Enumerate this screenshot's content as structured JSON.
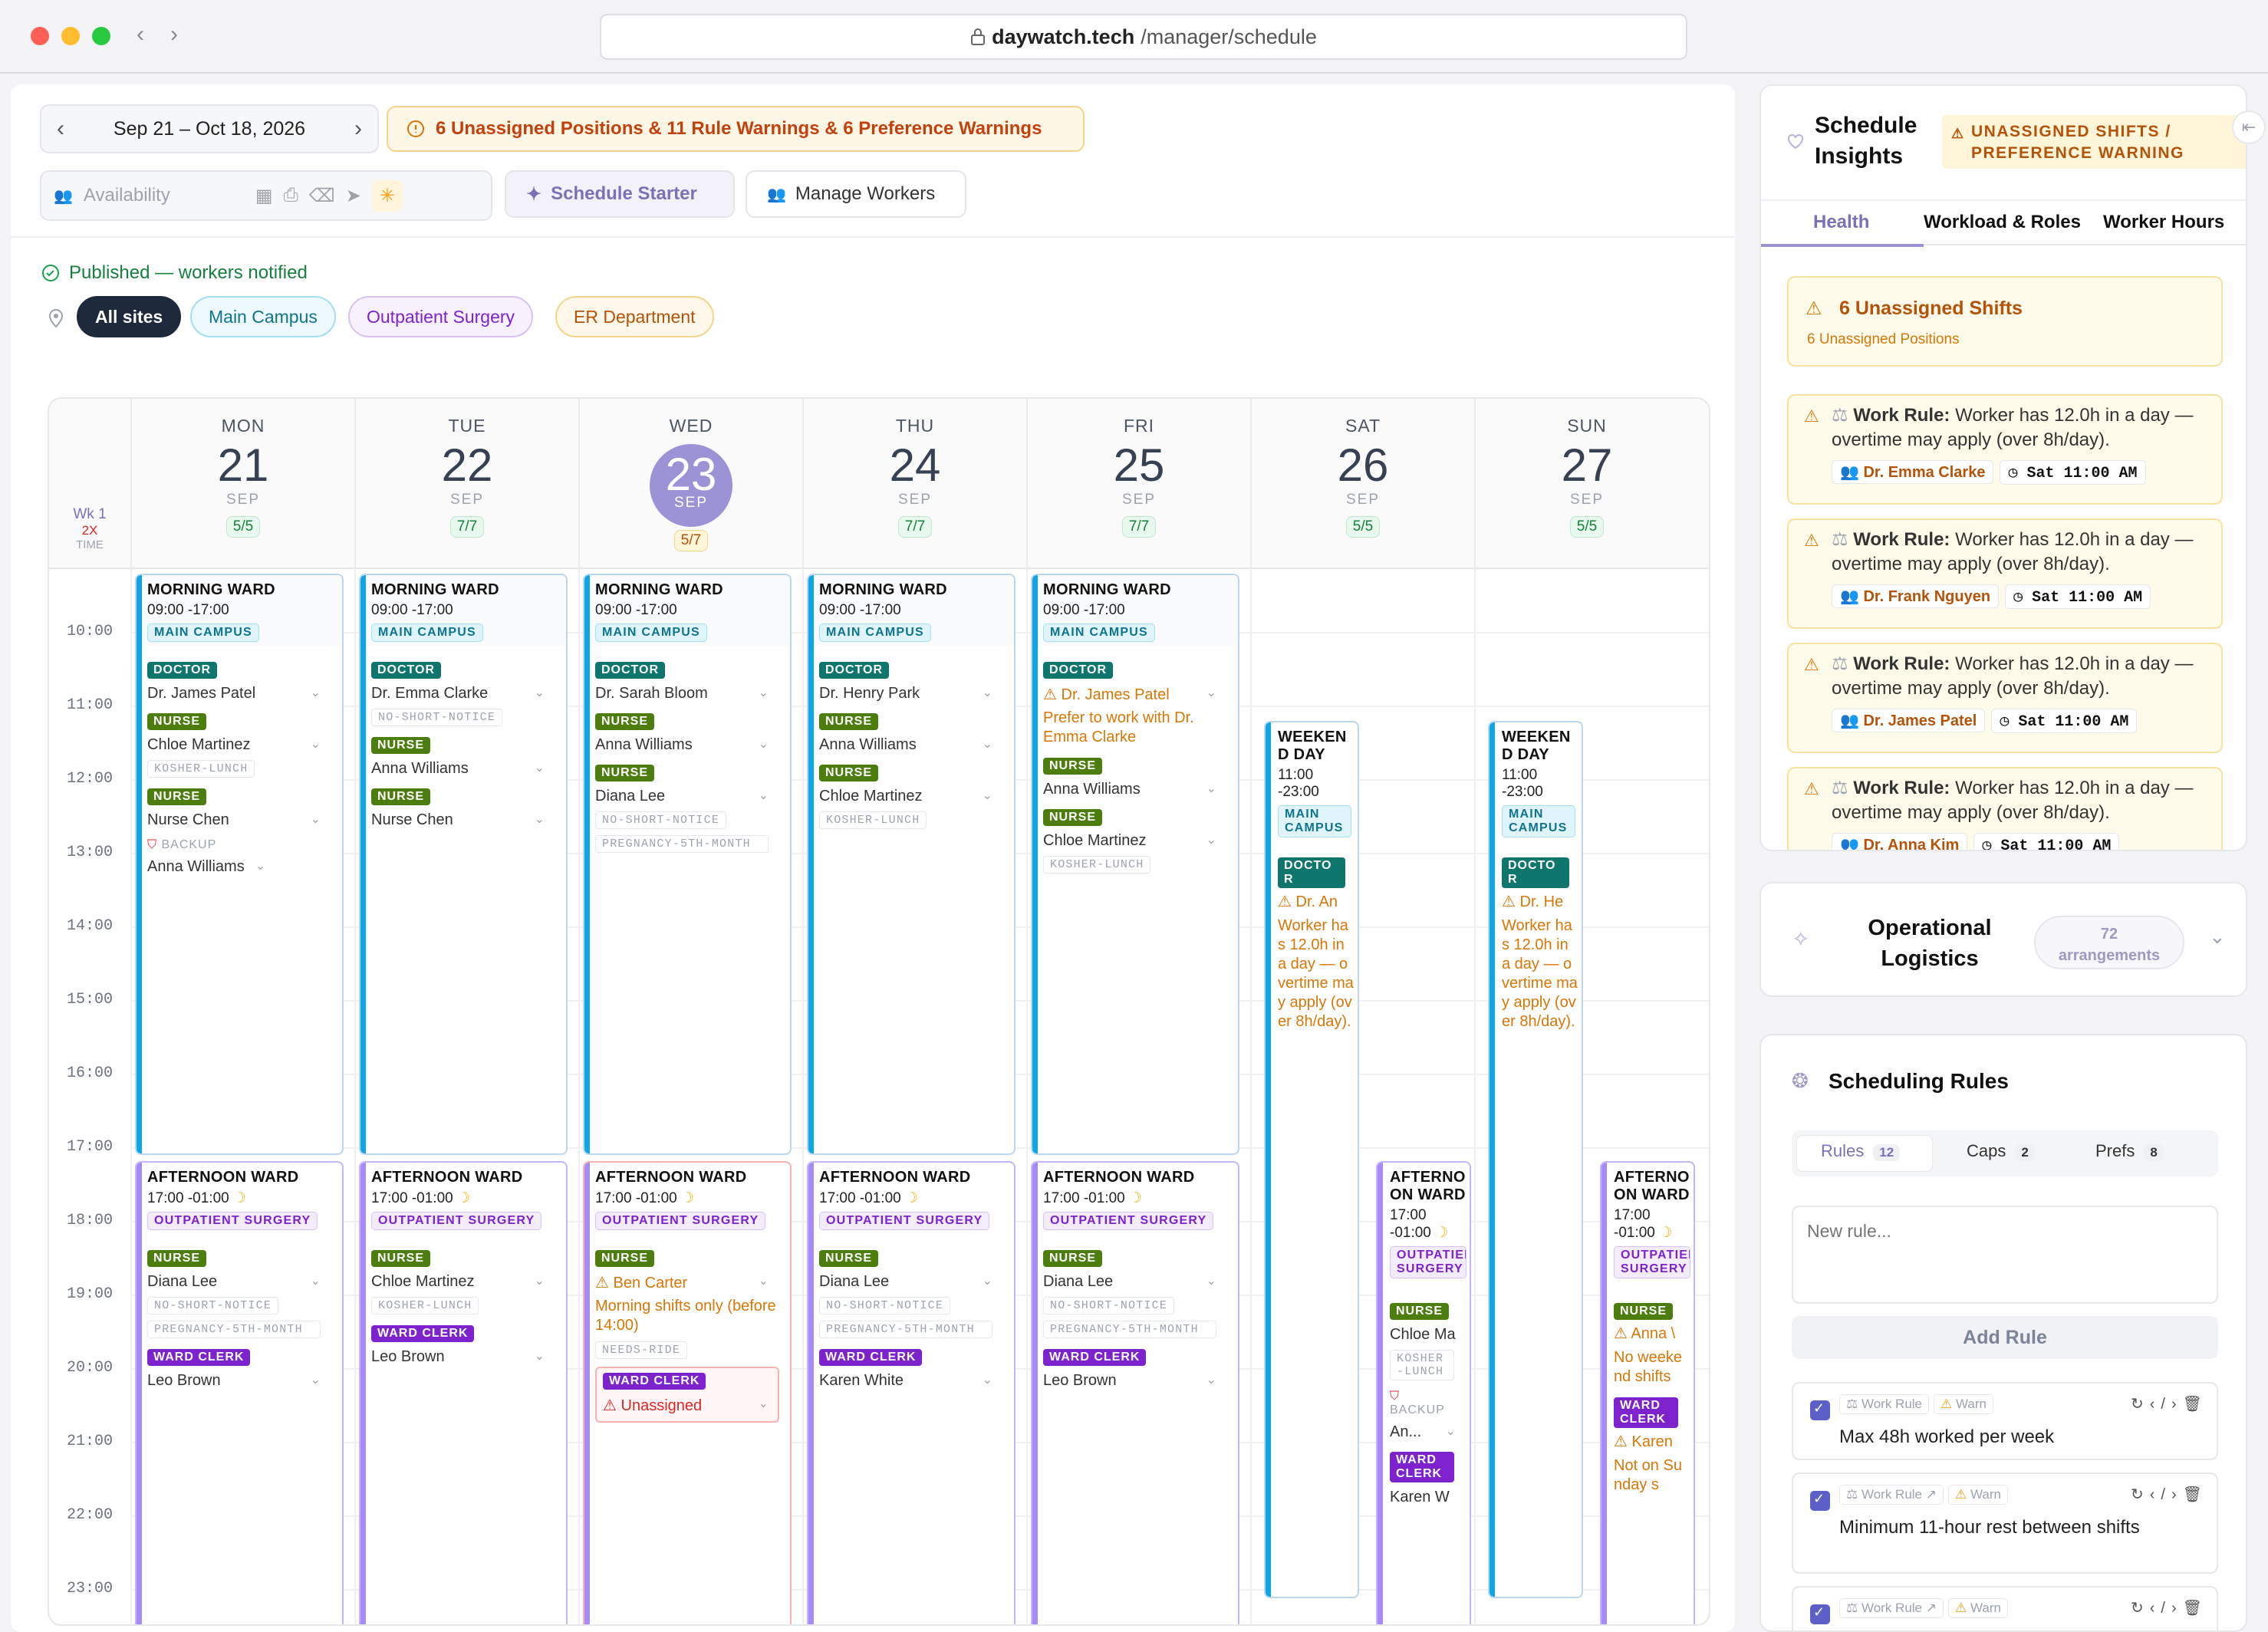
{
  "browser": {
    "host": "daywatch.tech",
    "path": "/manager/schedule"
  },
  "toolbar": {
    "date_range": "Sep 21 – Oct 18, 2026",
    "warning": "6 Unassigned Positions & 11 Rule Warnings & 6 Preference Warnings",
    "availability_placeholder": "Availability",
    "schedule_starter": "Schedule Starter",
    "manage_workers": "Manage Workers"
  },
  "status": {
    "published": "Published — workers notified"
  },
  "sites": [
    "All sites",
    "Main Campus",
    "Outpatient Surgery",
    "ER Department"
  ],
  "week": {
    "label": "Wk 1",
    "x": "2X",
    "time": "TIME"
  },
  "days": [
    {
      "dow": "MON",
      "num": "21",
      "mon": "SEP",
      "count": "5/5"
    },
    {
      "dow": "TUE",
      "num": "22",
      "mon": "SEP",
      "count": "7/7"
    },
    {
      "dow": "WED",
      "num": "23",
      "mon": "SEP",
      "count": "5/7"
    },
    {
      "dow": "THU",
      "num": "24",
      "mon": "SEP",
      "count": "7/7"
    },
    {
      "dow": "FRI",
      "num": "25",
      "mon": "SEP",
      "count": "7/7"
    },
    {
      "dow": "SAT",
      "num": "26",
      "mon": "SEP",
      "count": "5/5"
    },
    {
      "dow": "SUN",
      "num": "27",
      "mon": "SEP",
      "count": "5/5"
    }
  ],
  "hours": [
    "10:00",
    "11:00",
    "12:00",
    "13:00",
    "14:00",
    "15:00",
    "16:00",
    "17:00",
    "18:00",
    "19:00",
    "20:00",
    "21:00",
    "22:00",
    "23:00"
  ],
  "shifts": {
    "morning_title": "MORNING WARD",
    "morning_time": "09:00 -17:00",
    "main_campus": "MAIN CAMPUS",
    "afternoon_title": "AFTERNOON WARD",
    "afternoon_time": "17:00 -01:00",
    "outpatient": "OUTPATIENT SURGERY",
    "weekend_title": "WEEKEND DAY",
    "weekend_time": "11:00 -23:00",
    "sat_afternoon_title": "AFTERNOON WARD",
    "sat_afternoon_time": "17:00 -01:00",
    "role_doctor": "DOCTOR",
    "role_nurse": "NURSE",
    "role_ward_clerk": "WARD CLERK",
    "backup": "BACKUP",
    "tag_kosher": "KOSHER-LUNCH",
    "tag_no_short": "NO-SHORT-NOTICE",
    "tag_preg": "PREGNANCY-5TH-MONTH",
    "tag_ride": "NEEDS-RIDE",
    "mon_m": [
      "Dr. James Patel",
      "Chloe Martinez",
      "Nurse Chen",
      "Anna Williams"
    ],
    "tue_m": [
      "Dr. Emma Clarke",
      "Anna Williams",
      "Nurse Chen"
    ],
    "wed_m": [
      "Dr. Sarah Bloom",
      "Anna Williams",
      "Diana Lee"
    ],
    "thu_m": [
      "Dr. Henry Park",
      "Anna Williams",
      "Chloe Martinez"
    ],
    "fri_m": [
      "Dr. James Patel",
      "Prefer to work with Dr. Emma Clarke",
      "Anna Williams",
      "Chloe Martinez"
    ],
    "mon_a": [
      "Diana Lee",
      "Leo Brown"
    ],
    "tue_a": [
      "Chloe Martinez",
      "Leo Brown"
    ],
    "wed_a": [
      "Ben Carter",
      "Morning shifts only (before 14:00)",
      "Unassigned"
    ],
    "thu_a": [
      "Diana Lee",
      "Karen White"
    ],
    "fri_a": [
      "Diana Lee",
      "Leo Brown"
    ],
    "sat_w": [
      "Dr. An",
      "Worker has 12.0h in a day — overtime may apply (over 8h/day)."
    ],
    "sun_w": [
      "Dr. He",
      "Worker has 12.0h in a day — overtime may apply (over 8h/day)."
    ],
    "sat_a": [
      "Chloe Ma",
      "KOSHER-LUNCH",
      "An...",
      "Karen W"
    ],
    "sun_a": [
      "Anna \\",
      "No weekend shifts",
      "Karen",
      "Not on Sunday s"
    ]
  },
  "insights": {
    "title_1": "Schedule",
    "title_2": "Insights",
    "badge_1": "UNASSIGNED SHIFTS /",
    "badge_2": "PREFERENCE WARNING",
    "tabs": [
      "Health",
      "Workload & Roles",
      "Worker Hours"
    ],
    "unassigned_title": "6 Unassigned Shifts",
    "unassigned_sub": "6 Unassigned Positions",
    "rule_prefix": "Work Rule:",
    "rule_text": "Worker has 12.0h in a day — overtime may apply (over 8h/day).",
    "cards": [
      {
        "worker": "Dr. Emma Clarke",
        "time": "Sat 11:00 AM"
      },
      {
        "worker": "Dr. Frank Nguyen",
        "time": "Sat 11:00 AM"
      },
      {
        "worker": "Dr. James Patel",
        "time": "Sat 11:00 AM"
      },
      {
        "worker": "Dr. Anna Kim",
        "time": "Sat 11:00 AM"
      }
    ]
  },
  "oplog": {
    "title_1": "Operational",
    "title_2": "Logistics",
    "count": "72",
    "unit": "arrangements"
  },
  "rules": {
    "title": "Scheduling Rules",
    "tabs": [
      {
        "label": "Rules",
        "n": "12"
      },
      {
        "label": "Caps",
        "n": "2"
      },
      {
        "label": "Prefs",
        "n": "8"
      }
    ],
    "new_placeholder": "New rule...",
    "add": "Add Rule",
    "badge_rule": "Work Rule",
    "badge_warn": "Warn",
    "items": [
      "Max 48h worked per week",
      "Minimum 11-hour rest between shifts"
    ]
  },
  "colors": {
    "accent": "#7c70b8",
    "doctor": "#0f766e",
    "nurse": "#4d7c0f",
    "clerk": "#7e22ce",
    "warn": "#d97706",
    "mon_stripe": "#0ea5e9",
    "afternoon": "#a78bfa"
  }
}
